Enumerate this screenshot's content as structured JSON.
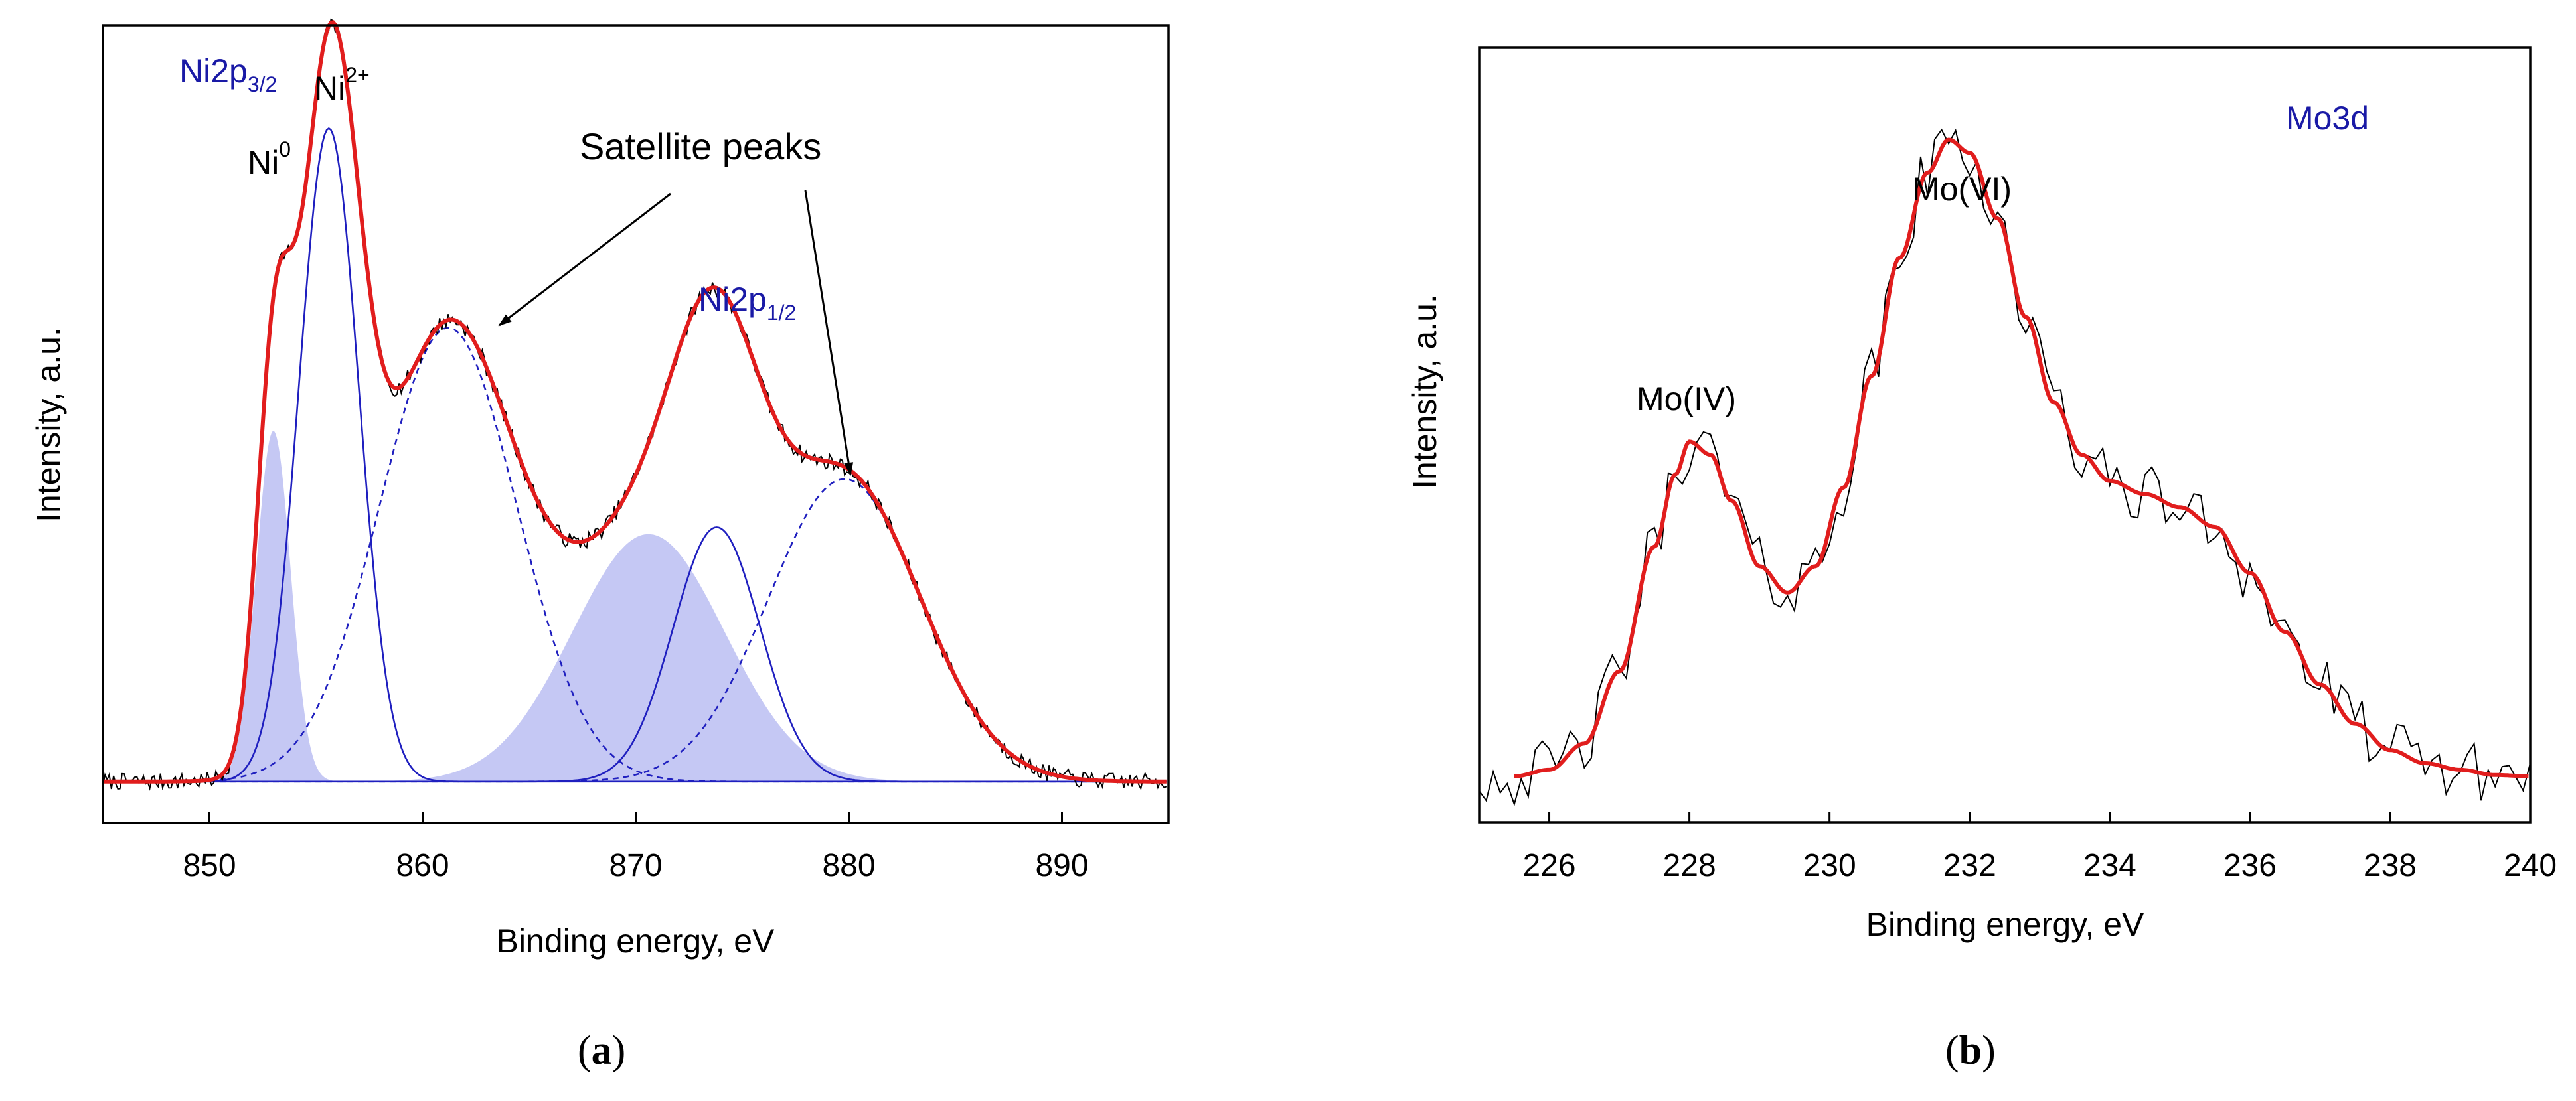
{
  "chart_data": [
    {
      "panel": "(a)",
      "type": "line",
      "xlabel": "Binding energy, eV",
      "ylabel": "Intensity, a.u.",
      "xlim": [
        845,
        895
      ],
      "ylim": [
        -0.06,
        1.1
      ],
      "xticks": [
        "850",
        "860",
        "870",
        "880",
        "890"
      ],
      "xtick_values": [
        850,
        860,
        870,
        880,
        890
      ],
      "axis_color": "#000000",
      "label_color": "#1a1aa6",
      "labels": {
        "ni2p32_main": "Ni2p",
        "ni2p32_sub": "3/2",
        "ni2p12_main": "Ni2p",
        "ni2p12_sub": "1/2",
        "ni0_main": "Ni",
        "ni0_sup": "0",
        "ni2_main": "Ni",
        "ni2_sup": "2+",
        "satellite": "Satellite peaks"
      },
      "components": [
        {
          "style": "filled",
          "center": 853.0,
          "amp": 0.51,
          "fwhm": 1.9,
          "color": "#7f86e6"
        },
        {
          "style": "solid",
          "center": 855.6,
          "amp": 0.95,
          "fwhm": 3.3,
          "color": "#1f1fbf"
        },
        {
          "style": "dashed",
          "center": 861.2,
          "amp": 0.66,
          "fwhm": 7.6,
          "color": "#1f1fbf"
        },
        {
          "style": "filled",
          "center": 870.6,
          "amp": 0.36,
          "fwhm": 8.4,
          "color": "#7f86e6"
        },
        {
          "style": "solid",
          "center": 873.8,
          "amp": 0.37,
          "fwhm": 4.8,
          "color": "#1f1fbf"
        },
        {
          "style": "dashed",
          "center": 879.8,
          "amp": 0.44,
          "fwhm": 8.4,
          "color": "#1f1fbf"
        }
      ],
      "envelope_color": "#e11d1d",
      "raw_color": "#000000",
      "raw_noise": 0.012,
      "fit_x_range": [
        845,
        895
      ],
      "raw_x_range": [
        845,
        895
      ]
    },
    {
      "panel": "(b)",
      "type": "line",
      "xlabel": "Binding energy, eV",
      "ylabel": "Intensity, a.u.",
      "xlim": [
        225,
        240
      ],
      "ylim": [
        -0.06,
        1.12
      ],
      "xticks": [
        "226",
        "228",
        "230",
        "232",
        "234",
        "236",
        "238",
        "240"
      ],
      "xtick_values": [
        226,
        228,
        230,
        232,
        234,
        236,
        238,
        240
      ],
      "label_color": "#1a1aa6",
      "labels": {
        "title": "Mo3d",
        "mo4": "Mo(IV)",
        "mo6": "Mo(VI)"
      },
      "fit": [
        [
          225.5,
          0.01
        ],
        [
          226.0,
          0.02
        ],
        [
          226.5,
          0.06
        ],
        [
          227.0,
          0.17
        ],
        [
          227.5,
          0.36
        ],
        [
          227.8,
          0.47
        ],
        [
          228.0,
          0.52
        ],
        [
          228.3,
          0.5
        ],
        [
          228.6,
          0.43
        ],
        [
          229.0,
          0.33
        ],
        [
          229.4,
          0.29
        ],
        [
          229.8,
          0.33
        ],
        [
          230.2,
          0.45
        ],
        [
          230.6,
          0.62
        ],
        [
          231.0,
          0.8
        ],
        [
          231.4,
          0.93
        ],
        [
          231.7,
          0.98
        ],
        [
          232.0,
          0.96
        ],
        [
          232.4,
          0.86
        ],
        [
          232.8,
          0.71
        ],
        [
          233.2,
          0.58
        ],
        [
          233.6,
          0.5
        ],
        [
          234.0,
          0.46
        ],
        [
          234.5,
          0.44
        ],
        [
          235.0,
          0.42
        ],
        [
          235.5,
          0.39
        ],
        [
          236.0,
          0.32
        ],
        [
          236.5,
          0.23
        ],
        [
          237.0,
          0.15
        ],
        [
          237.5,
          0.09
        ],
        [
          238.0,
          0.05
        ],
        [
          238.5,
          0.03
        ],
        [
          239.0,
          0.02
        ],
        [
          239.5,
          0.012
        ],
        [
          240.0,
          0.01
        ]
      ],
      "envelope_color": "#e11d1d",
      "raw_color": "#000000",
      "raw_noise": 0.045,
      "fit_x_range": [
        225.5,
        240
      ],
      "raw_x_range": [
        225,
        240
      ]
    }
  ],
  "panel_labels": [
    "a",
    "b"
  ]
}
